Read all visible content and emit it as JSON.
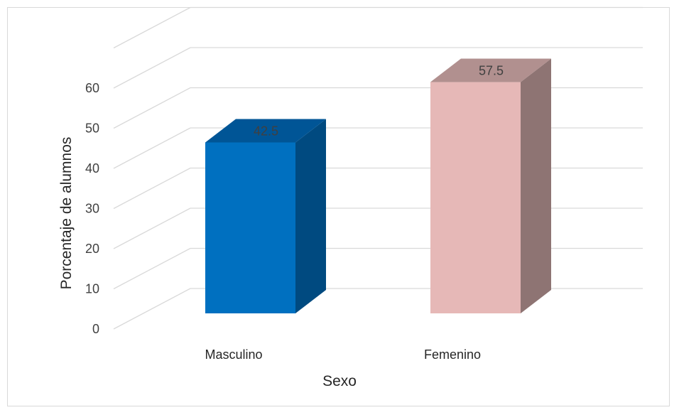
{
  "chart_data": {
    "type": "bar",
    "style": "3d-column",
    "categories": [
      "Masculino",
      "Femenino"
    ],
    "values": [
      42.5,
      57.5
    ],
    "data_labels": [
      "42.5",
      "57.5"
    ],
    "title": "",
    "xlabel": "Sexo",
    "ylabel": "Porcentaje de alumnos",
    "ylim": [
      0,
      60
    ],
    "yticks": [
      0,
      10,
      20,
      30,
      40,
      50,
      60
    ],
    "grid": true,
    "legend": "none",
    "colors": {
      "bars": [
        {
          "front": "#0070c0",
          "side": "#004a80",
          "top": "#005596"
        },
        {
          "front": "#e6b8b7",
          "side": "#8e7473",
          "top": "#b1908f"
        }
      ],
      "grid": "#d9d9d9"
    }
  }
}
